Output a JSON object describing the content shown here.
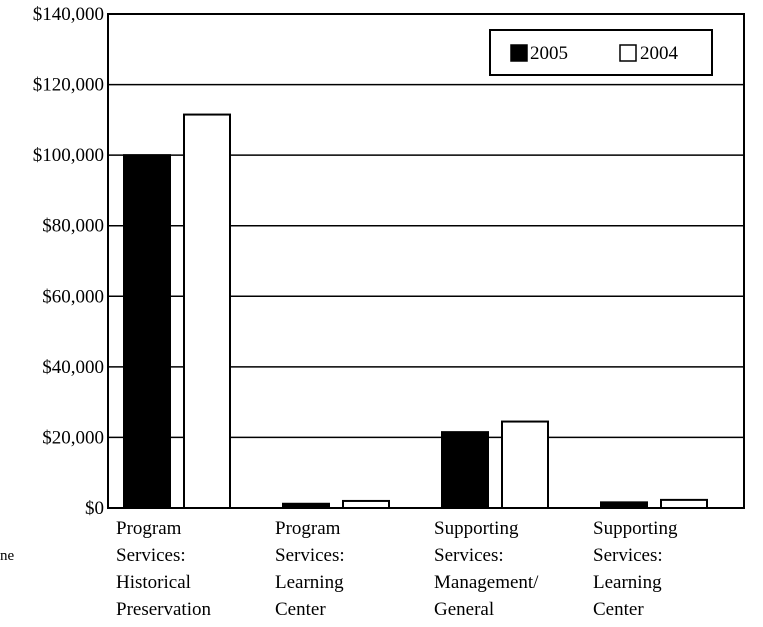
{
  "chart_data": {
    "type": "bar",
    "categories": [
      [
        "Program",
        "Services:",
        "Historical",
        "Preservation"
      ],
      [
        "Program",
        "Services:",
        "Learning",
        "Center"
      ],
      [
        "Supporting",
        "Services:",
        "Management/",
        "General"
      ],
      [
        "Supporting",
        "Services:",
        "Learning",
        "Center"
      ]
    ],
    "series": [
      {
        "name": "2005",
        "color": "#000000",
        "values": [
          100000,
          1200,
          21500,
          1600
        ]
      },
      {
        "name": "2004",
        "color": "#ffffff",
        "values": [
          111500,
          2000,
          24500,
          2300
        ]
      }
    ],
    "yticks": [
      "$0",
      "$20,000",
      "$40,000",
      "$60,000",
      "$80,000",
      "$100,000",
      "$120,000",
      "$140,000"
    ],
    "ylim": [
      0,
      140000
    ],
    "grid": true,
    "legend_position": "top-right",
    "stray_text": "ne"
  }
}
